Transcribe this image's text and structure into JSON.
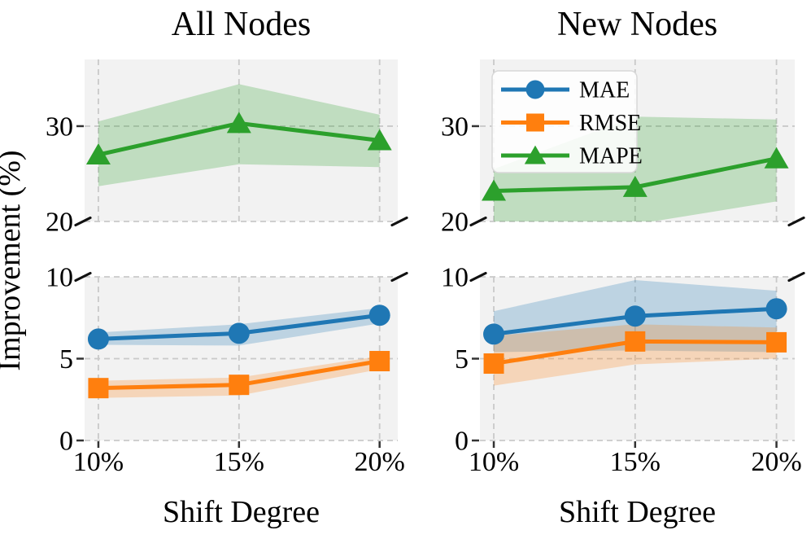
{
  "figure": {
    "ylabel": "Improvement (%)",
    "x_tick_labels": [
      "10%",
      "15%",
      "20%"
    ],
    "background_color": "#ffffff",
    "panel_background": "#f2f2f2",
    "grid_color": "#c9c9c9",
    "text_color": "#000000",
    "tick_color": "#333333",
    "break_marker_color": "#111111",
    "top_axis": {
      "ylim": [
        20,
        37
      ],
      "ticks": [
        {
          "value": 30,
          "label": "30",
          "break": false
        },
        {
          "value": 20,
          "label": "20",
          "break": true
        }
      ],
      "gridlines": [
        20,
        30
      ]
    },
    "bottom_axis": {
      "ylim": [
        0,
        10
      ],
      "ticks": [
        {
          "value": 10,
          "label": "10",
          "break": true
        },
        {
          "value": 5,
          "label": "5",
          "break": false
        },
        {
          "value": 0,
          "label": "0",
          "break": false
        }
      ],
      "gridlines": [
        0,
        5,
        10
      ]
    },
    "legend": {
      "position": "upper-left-of-right-subplot",
      "entries": [
        {
          "label": "MAE",
          "color": "#1f77b4",
          "marker": "circle"
        },
        {
          "label": "RMSE",
          "color": "#ff7f0e",
          "marker": "square"
        },
        {
          "label": "MAPE",
          "color": "#2ca02c",
          "marker": "triangle"
        }
      ]
    }
  },
  "chart_data": [
    {
      "type": "line",
      "title": "All Nodes",
      "xlabel": "Shift Degree",
      "x": [
        "10%",
        "15%",
        "20%"
      ],
      "broken_y_axis": {
        "top_range": [
          20,
          37
        ],
        "bottom_range": [
          0,
          10
        ]
      },
      "series": [
        {
          "name": "MAE",
          "color": "#1f77b4",
          "marker": "circle",
          "axis": "bottom",
          "values": [
            6.2,
            6.55,
            7.65
          ],
          "band_low": [
            5.85,
            5.8,
            7.15
          ],
          "band_high": [
            6.6,
            7.1,
            8.1
          ]
        },
        {
          "name": "RMSE",
          "color": "#ff7f0e",
          "marker": "square",
          "axis": "bottom",
          "values": [
            3.2,
            3.4,
            4.85
          ],
          "band_low": [
            2.6,
            2.75,
            4.35
          ],
          "band_high": [
            3.65,
            3.85,
            5.15
          ]
        },
        {
          "name": "MAPE",
          "color": "#2ca02c",
          "marker": "triangle",
          "axis": "top",
          "values": [
            27.0,
            30.3,
            28.5
          ],
          "band_low": [
            23.7,
            26.0,
            25.7
          ],
          "band_high": [
            30.5,
            34.4,
            31.2
          ]
        }
      ]
    },
    {
      "type": "line",
      "title": "New Nodes",
      "xlabel": "Shift Degree",
      "x": [
        "10%",
        "15%",
        "20%"
      ],
      "broken_y_axis": {
        "top_range": [
          20,
          37
        ],
        "bottom_range": [
          0,
          10
        ]
      },
      "series": [
        {
          "name": "MAE",
          "color": "#1f77b4",
          "marker": "circle",
          "axis": "bottom",
          "values": [
            6.5,
            7.6,
            8.05
          ],
          "band_low": [
            5.4,
            5.5,
            5.4
          ],
          "band_high": [
            7.9,
            9.8,
            9.15
          ]
        },
        {
          "name": "RMSE",
          "color": "#ff7f0e",
          "marker": "square",
          "axis": "bottom",
          "values": [
            4.7,
            6.05,
            6.0
          ],
          "band_low": [
            3.35,
            4.65,
            5.0
          ],
          "band_high": [
            6.4,
            7.1,
            6.9
          ]
        },
        {
          "name": "MAPE",
          "color": "#2ca02c",
          "marker": "triangle",
          "axis": "top",
          "values": [
            23.2,
            23.6,
            26.6
          ],
          "band_low": [
            19.3,
            19.7,
            22.1
          ],
          "band_high": [
            25.5,
            31.0,
            30.7
          ]
        }
      ]
    }
  ]
}
